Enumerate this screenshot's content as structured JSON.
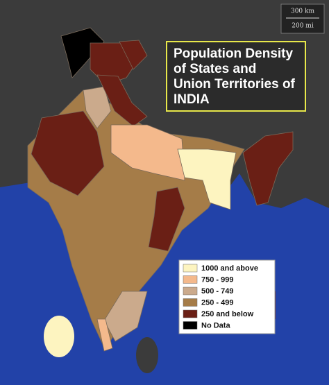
{
  "title": [
    "Population Density",
    "of States and",
    "Union Territories of",
    "INDIA"
  ],
  "scale": [
    "300 km",
    "200 mi"
  ],
  "legend": [
    {
      "label": "1000 and above",
      "color": "#fdf4c0"
    },
    {
      "label": "750 - 999",
      "color": "#f4b98c"
    },
    {
      "label": "500 - 749",
      "color": "#cbaa8c"
    },
    {
      "label": "250 - 499",
      "color": "#a57c48"
    },
    {
      "label": "250 and below",
      "color": "#6a1f15"
    },
    {
      "label": "No Data",
      "color": "#000000"
    }
  ]
}
